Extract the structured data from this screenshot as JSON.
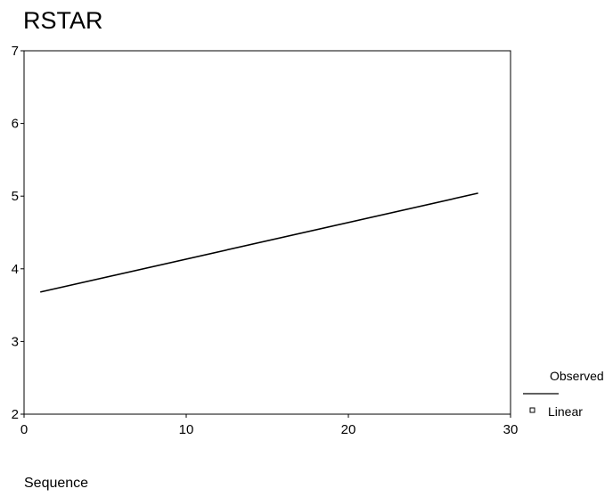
{
  "chart_data": {
    "type": "line",
    "title": "RSTAR",
    "xlabel": "Sequence",
    "ylabel": "",
    "xlim": [
      0,
      30
    ],
    "ylim": [
      2,
      7
    ],
    "xticks": [
      0,
      10,
      20,
      30
    ],
    "yticks": [
      2,
      3,
      4,
      5,
      6,
      7
    ],
    "xtick_labels": [
      "0",
      "10",
      "20",
      "30"
    ],
    "ytick_labels": [
      "2",
      "3",
      "4",
      "5",
      "6",
      "7"
    ],
    "grid": false,
    "legend_position": "bottom-right",
    "series": [
      {
        "name": "Observed",
        "style": "line",
        "x": [
          1,
          28
        ],
        "y": [
          3.68,
          5.04
        ]
      },
      {
        "name": "Linear",
        "style": "marker",
        "x": [],
        "y": []
      }
    ],
    "colors": {
      "line": "#000000",
      "axis": "#000000",
      "background": "#ffffff"
    }
  }
}
